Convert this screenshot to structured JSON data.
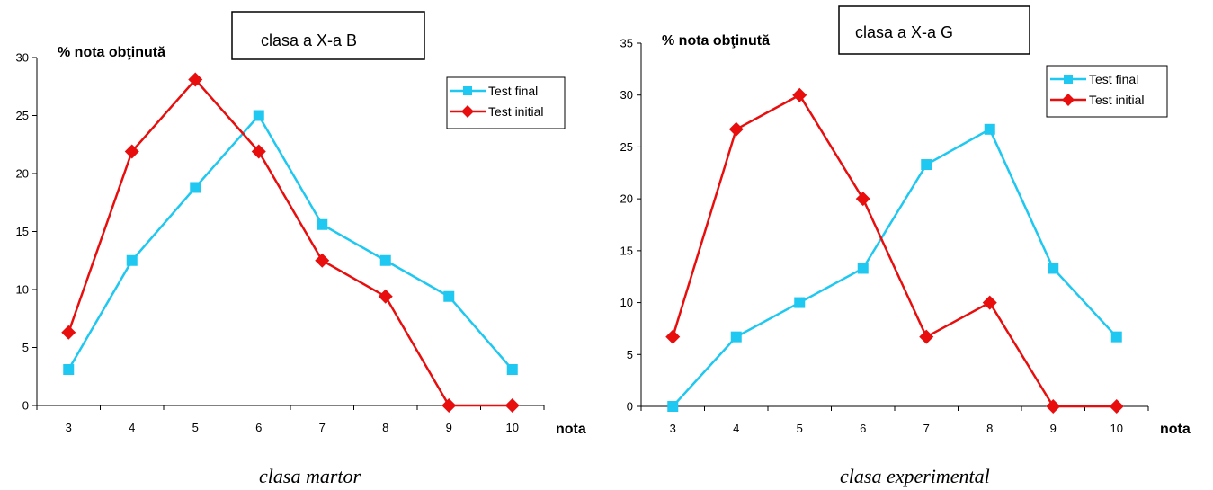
{
  "chart_data": [
    {
      "type": "line",
      "title": "clasa a X-a B",
      "ylabel": "% nota obţinută",
      "xlabel": "nota",
      "caption": "clasa martor",
      "x": [
        3,
        4,
        5,
        6,
        7,
        8,
        9,
        10
      ],
      "ylim": [
        0,
        30
      ],
      "yticks": [
        0,
        5,
        10,
        15,
        20,
        25,
        30
      ],
      "grid": false,
      "legend": "top-right",
      "series": [
        {
          "name": "Test final",
          "color": "#1ec8f0",
          "marker": "square",
          "values": [
            3.1,
            12.5,
            18.8,
            25,
            15.6,
            12.5,
            9.4,
            3.1
          ]
        },
        {
          "name": "Test initial",
          "color": "#e80e0e",
          "marker": "diamond",
          "values": [
            6.3,
            21.9,
            28.1,
            21.9,
            12.5,
            9.4,
            0,
            0
          ]
        }
      ]
    },
    {
      "type": "line",
      "title": "clasa a X-a G",
      "ylabel": "% nota obţinută",
      "xlabel": "nota",
      "caption": "clasa experimental",
      "x": [
        3,
        4,
        5,
        6,
        7,
        8,
        9,
        10
      ],
      "ylim": [
        0,
        35
      ],
      "yticks": [
        0,
        5,
        10,
        15,
        20,
        25,
        30,
        35
      ],
      "grid": false,
      "legend": "top-right",
      "series": [
        {
          "name": "Test final",
          "color": "#1ec8f0",
          "marker": "square",
          "values": [
            0,
            6.7,
            10,
            13.3,
            23.3,
            26.7,
            13.3,
            6.7
          ]
        },
        {
          "name": "Test initial",
          "color": "#e80e0e",
          "marker": "diamond",
          "values": [
            6.7,
            26.7,
            30,
            20,
            6.7,
            10,
            0,
            0
          ]
        }
      ]
    }
  ]
}
